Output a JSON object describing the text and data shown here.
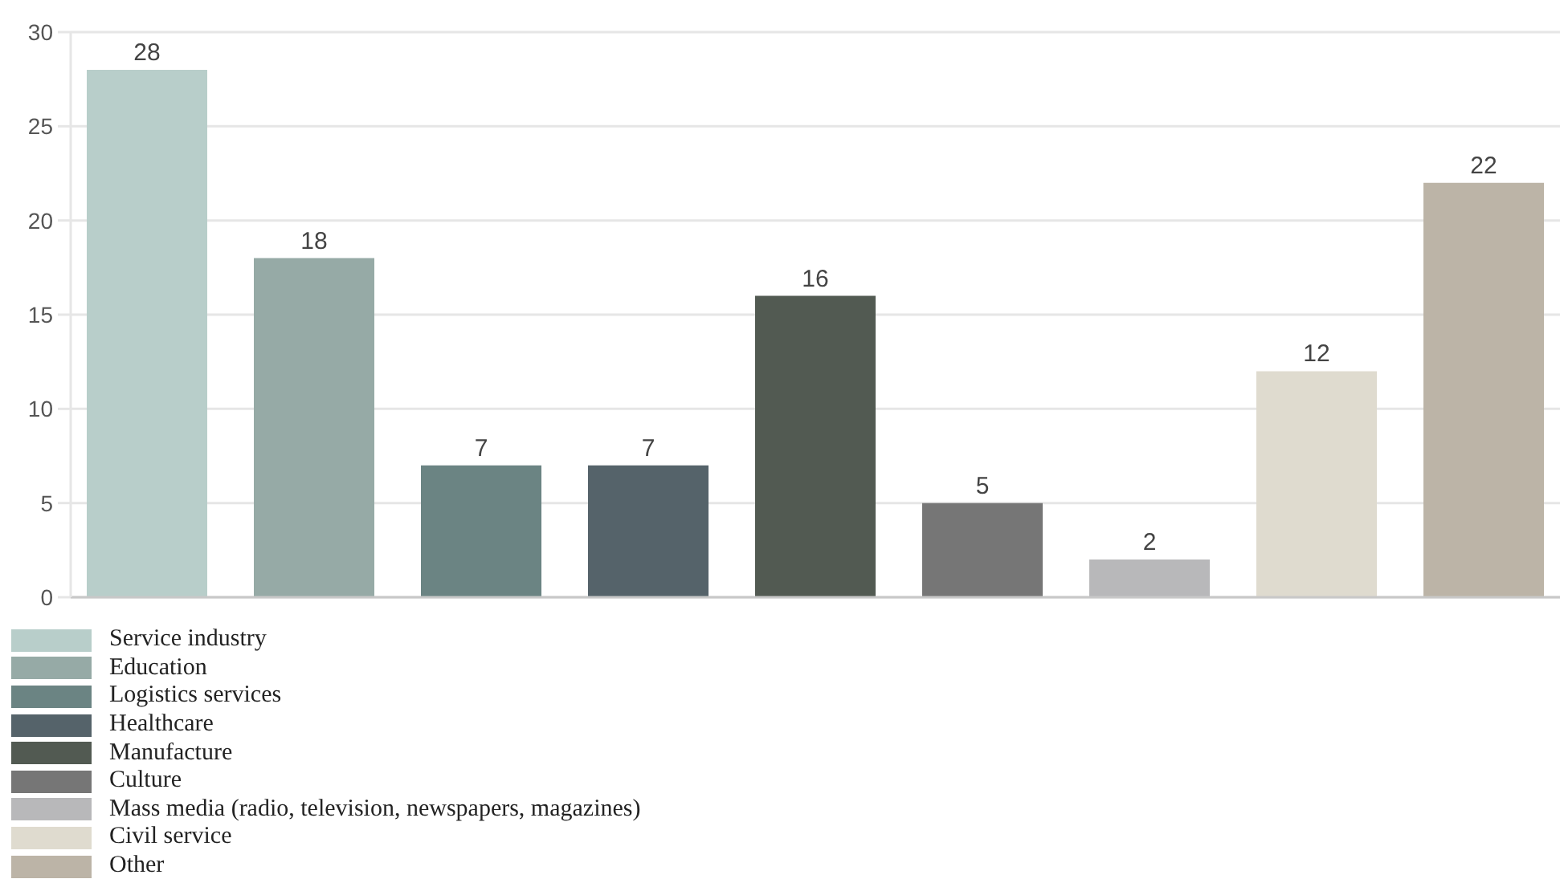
{
  "chart_data": {
    "type": "bar",
    "categories": [
      null
    ],
    "series": [
      {
        "name": "Service industry",
        "color": "#b8ceca",
        "values": [
          28
        ]
      },
      {
        "name": "Education",
        "color": "#96aaa6",
        "values": [
          18
        ]
      },
      {
        "name": "Logistics services",
        "color": "#6b8483",
        "values": [
          7
        ]
      },
      {
        "name": "Healthcare",
        "color": "#55636a",
        "values": [
          7
        ]
      },
      {
        "name": "Manufacture",
        "color": "#525a52",
        "values": [
          16
        ]
      },
      {
        "name": "Culture",
        "color": "#767676",
        "values": [
          5
        ]
      },
      {
        "name": "Mass media (radio, television, newspapers, magazines)",
        "color": "#b8b8ba",
        "values": [
          2
        ]
      },
      {
        "name": "Civil service",
        "color": "#dfdbcf",
        "values": [
          12
        ]
      },
      {
        "name": "Other",
        "color": "#bcb4a7",
        "values": [
          22
        ]
      }
    ],
    "ylim": [
      0,
      30
    ],
    "yticks": [
      0,
      5,
      10,
      15,
      20,
      25,
      30
    ],
    "grid": "y",
    "legend": "bottom left",
    "tick_labels": "y",
    "data_labels": true
  }
}
